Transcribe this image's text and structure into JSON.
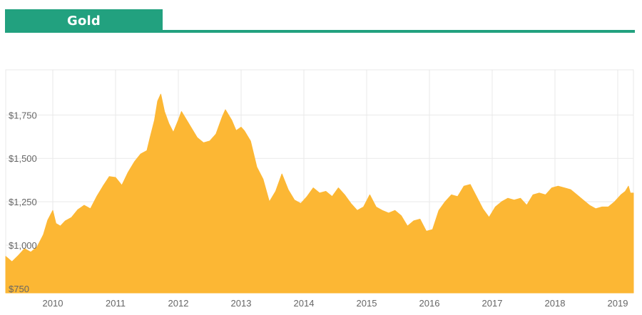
{
  "tab": {
    "label": "Gold"
  },
  "colors": {
    "accent": "#22a17f",
    "area": "#fcb734",
    "grid": "#e9e9e9",
    "tick": "#666666"
  },
  "chart_data": {
    "type": "area",
    "title": "Gold",
    "xlabel": "",
    "ylabel": "",
    "xlim": [
      2009.25,
      2019.25
    ],
    "ylim": [
      725,
      2010
    ],
    "x_ticks": [
      2010,
      2011,
      2012,
      2013,
      2014,
      2015,
      2016,
      2017,
      2018,
      2019
    ],
    "x_tick_labels": [
      "2010",
      "2011",
      "2012",
      "2013",
      "2014",
      "2015",
      "2016",
      "2017",
      "2018",
      "2019"
    ],
    "y_ticks": [
      750,
      1000,
      1250,
      1500,
      1750
    ],
    "y_tick_labels": [
      "$750",
      "$1,000",
      "$1,250",
      "$1,500",
      "$1,750"
    ],
    "grid": true,
    "series": [
      {
        "x": [
          2009.25,
          2009.35,
          2009.45,
          2009.55,
          2009.65,
          2009.75,
          2009.85,
          2009.92,
          2010.0,
          2010.05,
          2010.12,
          2010.2,
          2010.3,
          2010.4,
          2010.5,
          2010.6,
          2010.7,
          2010.8,
          2010.9,
          2011.0,
          2011.1,
          2011.2,
          2011.3,
          2011.4,
          2011.5,
          2011.55,
          2011.62,
          2011.67,
          2011.72,
          2011.78,
          2011.85,
          2011.92,
          2012.0,
          2012.05,
          2012.1,
          2012.2,
          2012.3,
          2012.4,
          2012.5,
          2012.6,
          2012.7,
          2012.75,
          2012.85,
          2012.92,
          2013.0,
          2013.05,
          2013.15,
          2013.25,
          2013.35,
          2013.45,
          2013.55,
          2013.65,
          2013.75,
          2013.85,
          2013.95,
          2014.05,
          2014.15,
          2014.25,
          2014.35,
          2014.45,
          2014.55,
          2014.65,
          2014.75,
          2014.85,
          2014.95,
          2015.05,
          2015.15,
          2015.25,
          2015.35,
          2015.45,
          2015.55,
          2015.65,
          2015.75,
          2015.85,
          2015.95,
          2016.05,
          2016.15,
          2016.25,
          2016.35,
          2016.45,
          2016.55,
          2016.65,
          2016.75,
          2016.85,
          2016.95,
          2017.05,
          2017.15,
          2017.25,
          2017.35,
          2017.45,
          2017.55,
          2017.65,
          2017.75,
          2017.85,
          2017.95,
          2018.05,
          2018.15,
          2018.25,
          2018.35,
          2018.45,
          2018.55,
          2018.65,
          2018.75,
          2018.85,
          2018.95,
          2019.05,
          2019.12,
          2019.17,
          2019.2,
          2019.25
        ],
        "values": [
          935,
          905,
          940,
          980,
          960,
          990,
          1060,
          1145,
          1200,
          1125,
          1110,
          1140,
          1160,
          1205,
          1230,
          1210,
          1280,
          1340,
          1395,
          1390,
          1345,
          1420,
          1480,
          1525,
          1545,
          1620,
          1720,
          1830,
          1870,
          1770,
          1700,
          1650,
          1720,
          1770,
          1740,
          1680,
          1620,
          1590,
          1600,
          1640,
          1740,
          1780,
          1720,
          1660,
          1680,
          1660,
          1600,
          1450,
          1380,
          1250,
          1310,
          1410,
          1320,
          1260,
          1240,
          1280,
          1330,
          1300,
          1310,
          1280,
          1330,
          1290,
          1240,
          1200,
          1220,
          1290,
          1220,
          1200,
          1185,
          1200,
          1170,
          1110,
          1140,
          1150,
          1080,
          1090,
          1200,
          1250,
          1290,
          1280,
          1340,
          1350,
          1280,
          1210,
          1160,
          1220,
          1250,
          1270,
          1260,
          1270,
          1230,
          1290,
          1300,
          1290,
          1330,
          1340,
          1330,
          1320,
          1290,
          1260,
          1230,
          1210,
          1220,
          1220,
          1250,
          1290,
          1310,
          1340,
          1300,
          1300
        ]
      }
    ]
  }
}
